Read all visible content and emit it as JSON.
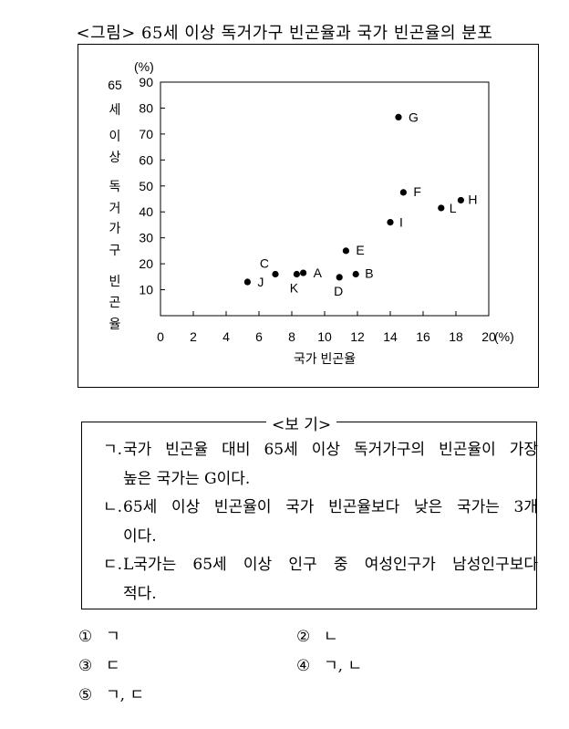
{
  "figure_title": "<그림> 65세 이상 독거가구 빈곤율과 국가 빈곤율의 분포",
  "chart_data": {
    "type": "scatter",
    "ylabel_chars": [
      "65",
      "세",
      "이",
      "상",
      "독",
      "거",
      "가",
      "구",
      "빈",
      "곤",
      "율"
    ],
    "y_unit": "(%)",
    "x_unit": "(%)",
    "xlabel": "국가 빈곤율",
    "xlim": [
      0,
      20
    ],
    "ylim": [
      0,
      90
    ],
    "x_ticks": [
      0,
      2,
      4,
      6,
      8,
      10,
      12,
      14,
      16,
      18,
      20
    ],
    "y_ticks": [
      10,
      20,
      30,
      40,
      50,
      60,
      70,
      80,
      90
    ],
    "grid": false,
    "points": [
      {
        "label": "A",
        "x": 8.7,
        "y": 16.5
      },
      {
        "label": "B",
        "x": 11.9,
        "y": 16.0
      },
      {
        "label": "C",
        "x": 7.0,
        "y": 16.0
      },
      {
        "label": "D",
        "x": 10.9,
        "y": 14.8
      },
      {
        "label": "E",
        "x": 11.3,
        "y": 25.0
      },
      {
        "label": "F",
        "x": 14.8,
        "y": 47.5
      },
      {
        "label": "G",
        "x": 14.5,
        "y": 76.5
      },
      {
        "label": "H",
        "x": 18.3,
        "y": 44.5
      },
      {
        "label": "I",
        "x": 14.0,
        "y": 36.0
      },
      {
        "label": "J",
        "x": 5.3,
        "y": 13.0
      },
      {
        "label": "K",
        "x": 8.3,
        "y": 16.0
      },
      {
        "label": "L",
        "x": 17.1,
        "y": 41.5
      }
    ]
  },
  "bogi": {
    "title": "<보 기>",
    "items": [
      {
        "marker": "ㄱ.",
        "lines": [
          "국가 빈곤율 대비 65세 이상 독거가구의 빈곤율이 가장",
          "높은 국가는 G이다."
        ]
      },
      {
        "marker": "ㄴ.",
        "lines": [
          "65세 이상 빈곤율이 국가 빈곤율보다 낮은 국가는 3개",
          "이다."
        ]
      },
      {
        "marker": "ㄷ.",
        "lines": [
          "L국가는 65세 이상 인구 중 여성인구가 남성인구보다",
          "적다."
        ]
      }
    ]
  },
  "choices": [
    {
      "num": "①",
      "text": "ㄱ"
    },
    {
      "num": "②",
      "text": "ㄴ"
    },
    {
      "num": "③",
      "text": "ㄷ"
    },
    {
      "num": "④",
      "text": "ㄱ, ㄴ"
    },
    {
      "num": "⑤",
      "text": "ㄱ, ㄷ"
    }
  ]
}
